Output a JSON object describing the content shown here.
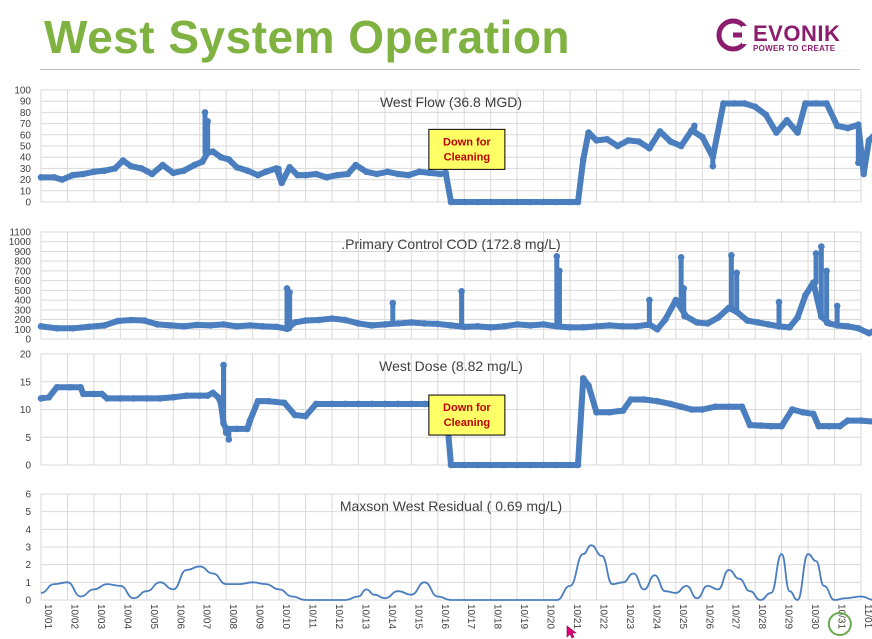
{
  "header": {
    "title": "West System Operation",
    "logo_name": "EVONIK",
    "logo_tagline": "POWER TO CREATE",
    "title_color": "#7fb241",
    "logo_color": "#8c1d6e"
  },
  "x_axis": {
    "dates": [
      "10/01",
      "10/02",
      "10/03",
      "10/04",
      "10/05",
      "10/06",
      "10/07",
      "10/08",
      "10/09",
      "10/10",
      "10/11",
      "10/12",
      "10/13",
      "10/14",
      "10/15",
      "10/16",
      "10/17",
      "10/18",
      "10/19",
      "10/20",
      "10/21",
      "10/22",
      "10/23",
      "10/24",
      "10/25",
      "10/26",
      "10/27",
      "10/28",
      "10/29",
      "10/30",
      "10/31",
      "11/01"
    ]
  },
  "chart_data": [
    {
      "type": "scatter",
      "title": "West Flow (36.8 MGD)",
      "ylim": [
        0,
        100
      ],
      "yticks": [
        0,
        10,
        20,
        30,
        40,
        50,
        60,
        70,
        80,
        90,
        100
      ],
      "annotation": "Down for Cleaning",
      "annotation_at": {
        "x": 16.1,
        "y": 47
      },
      "color": "#4a7ebf",
      "points": [
        [
          0,
          22
        ],
        [
          0.5,
          22
        ],
        [
          0.8,
          20
        ],
        [
          1.2,
          24
        ],
        [
          1.6,
          25
        ],
        [
          2,
          27
        ],
        [
          2.4,
          28
        ],
        [
          2.8,
          30
        ],
        [
          3.1,
          37
        ],
        [
          3.4,
          32
        ],
        [
          3.8,
          30
        ],
        [
          4.2,
          25
        ],
        [
          4.6,
          33
        ],
        [
          5,
          26
        ],
        [
          5.4,
          28
        ],
        [
          5.8,
          33
        ],
        [
          6.1,
          36
        ],
        [
          6.3,
          44
        ],
        [
          6.5,
          45
        ],
        [
          6.8,
          40
        ],
        [
          7.1,
          38
        ],
        [
          7.4,
          31
        ],
        [
          7.8,
          28
        ],
        [
          8.2,
          24
        ],
        [
          8.5,
          27
        ],
        [
          8.9,
          30
        ],
        [
          9.1,
          17
        ],
        [
          9.4,
          31
        ],
        [
          9.7,
          24
        ],
        [
          10,
          24
        ],
        [
          10.4,
          25
        ],
        [
          10.8,
          22
        ],
        [
          11.2,
          24
        ],
        [
          11.6,
          25
        ],
        [
          11.9,
          33
        ],
        [
          12.3,
          27
        ],
        [
          12.7,
          25
        ],
        [
          13.1,
          27
        ],
        [
          13.5,
          25
        ],
        [
          13.9,
          24
        ],
        [
          14.3,
          27
        ],
        [
          14.7,
          26
        ],
        [
          15.1,
          25
        ],
        [
          15.3,
          26
        ],
        [
          15.5,
          0
        ],
        [
          16,
          0
        ],
        [
          16.5,
          0
        ],
        [
          17,
          0
        ],
        [
          17.5,
          0
        ],
        [
          18,
          0
        ],
        [
          18.5,
          0
        ],
        [
          19,
          0
        ],
        [
          19.5,
          0
        ],
        [
          20,
          0
        ],
        [
          20.3,
          0
        ],
        [
          20.5,
          38
        ],
        [
          20.7,
          62
        ],
        [
          21,
          55
        ],
        [
          21.4,
          56
        ],
        [
          21.8,
          50
        ],
        [
          22.2,
          55
        ],
        [
          22.6,
          54
        ],
        [
          23,
          48
        ],
        [
          23.4,
          63
        ],
        [
          23.8,
          54
        ],
        [
          24.2,
          50
        ],
        [
          24.6,
          64
        ],
        [
          25,
          58
        ],
        [
          25.4,
          40
        ],
        [
          25.8,
          88
        ],
        [
          26.2,
          88
        ],
        [
          26.6,
          88
        ],
        [
          27,
          85
        ],
        [
          27.4,
          78
        ],
        [
          27.8,
          62
        ],
        [
          28.2,
          73
        ],
        [
          28.6,
          62
        ],
        [
          28.9,
          88
        ],
        [
          29.3,
          88
        ],
        [
          29.7,
          88
        ],
        [
          30.1,
          68
        ],
        [
          30.5,
          66
        ],
        [
          30.9,
          69
        ],
        [
          31.1,
          25
        ],
        [
          31.3,
          55
        ],
        [
          31.6,
          62
        ],
        [
          31.9,
          70
        ]
      ],
      "spikes": [
        [
          6.2,
          80
        ],
        [
          6.3,
          72
        ],
        [
          9.0,
          25
        ],
        [
          24.7,
          68
        ],
        [
          25.4,
          32
        ],
        [
          30.9,
          35
        ]
      ]
    },
    {
      "type": "scatter",
      "title": ".Primary Control COD (172.8 mg/L)",
      "ylim": [
        0,
        1100
      ],
      "yticks": [
        0,
        100,
        200,
        300,
        400,
        500,
        600,
        700,
        800,
        900,
        1000,
        1100
      ],
      "color": "#4a7ebf",
      "points": [
        [
          0,
          130
        ],
        [
          0.6,
          110
        ],
        [
          1.2,
          110
        ],
        [
          1.8,
          125
        ],
        [
          2.4,
          140
        ],
        [
          2.9,
          185
        ],
        [
          3.4,
          195
        ],
        [
          3.9,
          190
        ],
        [
          4.4,
          150
        ],
        [
          4.9,
          140
        ],
        [
          5.4,
          130
        ],
        [
          5.9,
          145
        ],
        [
          6.4,
          140
        ],
        [
          6.9,
          150
        ],
        [
          7.4,
          130
        ],
        [
          7.9,
          140
        ],
        [
          8.4,
          130
        ],
        [
          8.9,
          125
        ],
        [
          9.3,
          105
        ],
        [
          9.6,
          170
        ],
        [
          10,
          190
        ],
        [
          10.5,
          195
        ],
        [
          11,
          210
        ],
        [
          11.5,
          195
        ],
        [
          12,
          160
        ],
        [
          12.5,
          140
        ],
        [
          13,
          150
        ],
        [
          13.5,
          160
        ],
        [
          14,
          170
        ],
        [
          14.5,
          160
        ],
        [
          15,
          155
        ],
        [
          15.5,
          140
        ],
        [
          16,
          125
        ],
        [
          16.5,
          130
        ],
        [
          17,
          120
        ],
        [
          17.5,
          130
        ],
        [
          18,
          150
        ],
        [
          18.5,
          140
        ],
        [
          19,
          150
        ],
        [
          19.5,
          130
        ],
        [
          20,
          120
        ],
        [
          20.5,
          120
        ],
        [
          21,
          130
        ],
        [
          21.5,
          140
        ],
        [
          22,
          130
        ],
        [
          22.5,
          130
        ],
        [
          23,
          150
        ],
        [
          23.3,
          100
        ],
        [
          23.6,
          200
        ],
        [
          24,
          400
        ],
        [
          24.4,
          230
        ],
        [
          24.8,
          170
        ],
        [
          25.2,
          160
        ],
        [
          25.6,
          220
        ],
        [
          26,
          320
        ],
        [
          26.3,
          280
        ],
        [
          26.7,
          190
        ],
        [
          27.1,
          170
        ],
        [
          27.5,
          150
        ],
        [
          27.9,
          130
        ],
        [
          28.3,
          120
        ],
        [
          28.6,
          220
        ],
        [
          28.9,
          450
        ],
        [
          29.2,
          580
        ],
        [
          29.5,
          230
        ],
        [
          29.8,
          160
        ],
        [
          30.1,
          140
        ],
        [
          30.5,
          130
        ],
        [
          30.9,
          110
        ],
        [
          31.3,
          60
        ],
        [
          31.6,
          100
        ],
        [
          31.9,
          150
        ]
      ],
      "spikes": [
        [
          9.3,
          520
        ],
        [
          9.4,
          480
        ],
        [
          13.3,
          370
        ],
        [
          15.9,
          490
        ],
        [
          19.5,
          850
        ],
        [
          19.6,
          700
        ],
        [
          23.0,
          400
        ],
        [
          24.2,
          840
        ],
        [
          24.3,
          520
        ],
        [
          26.1,
          860
        ],
        [
          26.3,
          680
        ],
        [
          27.9,
          380
        ],
        [
          29.3,
          880
        ],
        [
          29.5,
          950
        ],
        [
          29.7,
          700
        ],
        [
          30.1,
          340
        ]
      ]
    },
    {
      "type": "scatter",
      "title": "West Dose (8.82 mg/L)",
      "ylim": [
        0,
        20
      ],
      "yticks": [
        0,
        5,
        10,
        15,
        20
      ],
      "annotation": "Down for Cleaning",
      "annotation_at": {
        "x": 16.1,
        "y": 9
      },
      "color": "#4a7ebf",
      "points": [
        [
          0,
          12
        ],
        [
          0.3,
          12.2
        ],
        [
          0.6,
          14
        ],
        [
          1.1,
          14
        ],
        [
          1.5,
          14
        ],
        [
          1.6,
          12.8
        ],
        [
          2,
          12.8
        ],
        [
          2.3,
          12.8
        ],
        [
          2.5,
          12
        ],
        [
          3,
          12
        ],
        [
          3.5,
          12
        ],
        [
          4,
          12
        ],
        [
          4.5,
          12
        ],
        [
          5,
          12.2
        ],
        [
          5.5,
          12.5
        ],
        [
          6,
          12.5
        ],
        [
          6.3,
          12.5
        ],
        [
          6.5,
          13
        ],
        [
          6.7,
          12.2
        ],
        [
          6.8,
          11.2
        ],
        [
          6.9,
          7.5
        ],
        [
          7,
          6.5
        ],
        [
          7.4,
          6.5
        ],
        [
          7.8,
          6.5
        ],
        [
          7.9,
          8
        ],
        [
          8.2,
          11.5
        ],
        [
          8.6,
          11.5
        ],
        [
          9.2,
          11.2
        ],
        [
          9.6,
          9
        ],
        [
          10,
          8.8
        ],
        [
          10.4,
          11
        ],
        [
          11,
          11
        ],
        [
          11.5,
          11
        ],
        [
          12,
          11
        ],
        [
          12.5,
          11
        ],
        [
          13,
          11
        ],
        [
          13.5,
          11
        ],
        [
          14,
          11
        ],
        [
          14.5,
          11
        ],
        [
          15,
          11
        ],
        [
          15.3,
          11
        ],
        [
          15.5,
          0
        ],
        [
          16,
          0
        ],
        [
          16.5,
          0
        ],
        [
          17,
          0
        ],
        [
          17.5,
          0
        ],
        [
          18,
          0
        ],
        [
          18.5,
          0
        ],
        [
          19,
          0
        ],
        [
          19.5,
          0
        ],
        [
          20,
          0
        ],
        [
          20.3,
          0
        ],
        [
          20.5,
          15.6
        ],
        [
          20.7,
          14.3
        ],
        [
          21,
          9.5
        ],
        [
          21.5,
          9.5
        ],
        [
          22,
          9.8
        ],
        [
          22.3,
          11.8
        ],
        [
          22.8,
          11.8
        ],
        [
          23.3,
          11.5
        ],
        [
          23.8,
          11
        ],
        [
          24.2,
          10.5
        ],
        [
          24.6,
          10
        ],
        [
          25,
          10
        ],
        [
          25.5,
          10.5
        ],
        [
          26,
          10.5
        ],
        [
          26.5,
          10.5
        ],
        [
          26.8,
          7.2
        ],
        [
          27.2,
          7.1
        ],
        [
          27.6,
          7
        ],
        [
          28,
          7
        ],
        [
          28.4,
          10
        ],
        [
          28.8,
          9.5
        ],
        [
          29.2,
          9.2
        ],
        [
          29.4,
          7
        ],
        [
          29.8,
          7
        ],
        [
          30.2,
          7
        ],
        [
          30.5,
          8
        ],
        [
          31,
          8
        ],
        [
          31.5,
          7.8
        ],
        [
          31.9,
          8.2
        ]
      ],
      "spikes": [
        [
          6.9,
          18
        ],
        [
          7.0,
          5.8
        ],
        [
          7.1,
          4.6
        ],
        [
          20.5,
          15.6
        ],
        [
          7.0,
          6.2
        ]
      ]
    },
    {
      "type": "line",
      "title": "Maxson West Residual ( 0.69 mg/L)",
      "ylim": [
        0,
        6
      ],
      "yticks": [
        0,
        1,
        2,
        3,
        4,
        5,
        6
      ],
      "color": "#4a7ebf",
      "points": [
        [
          0,
          0.4
        ],
        [
          0.5,
          0.9
        ],
        [
          1,
          1
        ],
        [
          1.5,
          0.2
        ],
        [
          2,
          0.6
        ],
        [
          2.5,
          0.9
        ],
        [
          3,
          0.8
        ],
        [
          3.5,
          0.1
        ],
        [
          4,
          0.5
        ],
        [
          4.5,
          1
        ],
        [
          5,
          0.6
        ],
        [
          5.5,
          1.7
        ],
        [
          6,
          1.9
        ],
        [
          6.5,
          1.5
        ],
        [
          7,
          0.9
        ],
        [
          7.5,
          0.9
        ],
        [
          8,
          1
        ],
        [
          8.5,
          0.9
        ],
        [
          9,
          0.6
        ],
        [
          9.5,
          0.2
        ],
        [
          10,
          0
        ],
        [
          10.5,
          0
        ],
        [
          11,
          0
        ],
        [
          11.5,
          0
        ],
        [
          12,
          0.2
        ],
        [
          12.3,
          0.6
        ],
        [
          12.6,
          0.3
        ],
        [
          13,
          0.1
        ],
        [
          13.5,
          0.5
        ],
        [
          14,
          0.3
        ],
        [
          14.5,
          1
        ],
        [
          15,
          0.2
        ],
        [
          15.5,
          0
        ],
        [
          16,
          0
        ],
        [
          16.5,
          0
        ],
        [
          17,
          0
        ],
        [
          17.5,
          0
        ],
        [
          18,
          0
        ],
        [
          18.5,
          0
        ],
        [
          19,
          0
        ],
        [
          19.5,
          0
        ],
        [
          20,
          0.8
        ],
        [
          20.5,
          2.6
        ],
        [
          20.8,
          3.1
        ],
        [
          21.2,
          2.5
        ],
        [
          21.6,
          0.9
        ],
        [
          22,
          1
        ],
        [
          22.4,
          1.5
        ],
        [
          22.8,
          0.6
        ],
        [
          23.2,
          1.4
        ],
        [
          23.6,
          0.5
        ],
        [
          24,
          0.4
        ],
        [
          24.4,
          0.8
        ],
        [
          24.8,
          0.1
        ],
        [
          25.2,
          0.8
        ],
        [
          25.6,
          0.6
        ],
        [
          26,
          1.7
        ],
        [
          26.4,
          1.2
        ],
        [
          26.8,
          0.5
        ],
        [
          27.2,
          0
        ],
        [
          27.6,
          0.4
        ],
        [
          28,
          2.6
        ],
        [
          28.3,
          0.5
        ],
        [
          28.6,
          0
        ],
        [
          29,
          2.6
        ],
        [
          29.3,
          2.2
        ],
        [
          29.6,
          0.8
        ],
        [
          30,
          0
        ],
        [
          30.4,
          0.1
        ],
        [
          31,
          0.2
        ],
        [
          31.5,
          0
        ]
      ]
    }
  ]
}
